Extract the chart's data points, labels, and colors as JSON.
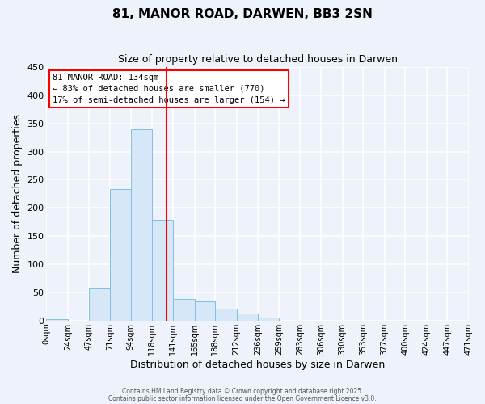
{
  "title": "81, MANOR ROAD, DARWEN, BB3 2SN",
  "subtitle": "Size of property relative to detached houses in Darwen",
  "xlabel": "Distribution of detached houses by size in Darwen",
  "ylabel": "Number of detached properties",
  "bar_color": "#d6e8f7",
  "bar_edgecolor": "#7fbfdf",
  "background_color": "#eef2fb",
  "grid_color": "#ffffff",
  "vline_x": 134,
  "vline_color": "red",
  "bin_edges": [
    0,
    24,
    47,
    71,
    94,
    118,
    141,
    165,
    188,
    212,
    236,
    259,
    283,
    306,
    330,
    353,
    377,
    400,
    424,
    447,
    471
  ],
  "bin_labels": [
    "0sqm",
    "24sqm",
    "47sqm",
    "71sqm",
    "94sqm",
    "118sqm",
    "141sqm",
    "165sqm",
    "188sqm",
    "212sqm",
    "236sqm",
    "259sqm",
    "283sqm",
    "306sqm",
    "330sqm",
    "353sqm",
    "377sqm",
    "400sqm",
    "424sqm",
    "447sqm",
    "471sqm"
  ],
  "bar_heights": [
    2,
    0,
    57,
    234,
    340,
    179,
    38,
    34,
    21,
    13,
    5,
    0,
    0,
    0,
    0,
    0,
    0,
    0,
    0,
    0
  ],
  "ylim": [
    0,
    450
  ],
  "yticks": [
    0,
    50,
    100,
    150,
    200,
    250,
    300,
    350,
    400,
    450
  ],
  "annotation_title": "81 MANOR ROAD: 134sqm",
  "annotation_line1": "← 83% of detached houses are smaller (770)",
  "annotation_line2": "17% of semi-detached houses are larger (154) →",
  "footer1": "Contains HM Land Registry data © Crown copyright and database right 2025.",
  "footer2": "Contains public sector information licensed under the Open Government Licence v3.0."
}
